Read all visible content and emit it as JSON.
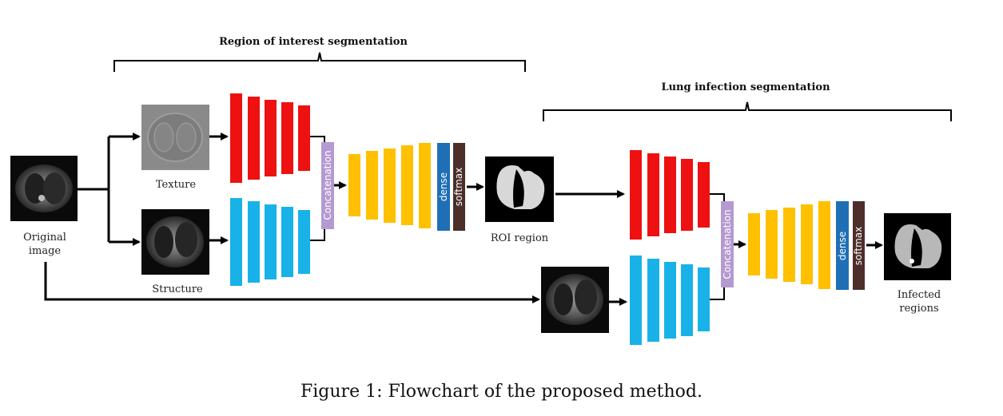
{
  "headers": {
    "roi": "Region of interest segmentation",
    "lung": "Lung infection segmentation"
  },
  "labels": {
    "original": [
      "Original",
      "image"
    ],
    "texture": "Texture",
    "structure": "Structure",
    "roi_region": "ROI region",
    "infected": [
      "Infected",
      "regions"
    ]
  },
  "blocks": {
    "concatenation": "Concatenation",
    "dense": "dense",
    "softmax": "softmax"
  },
  "caption": "Figure 1: Flowchart of the proposed method.",
  "colors": {
    "encoder_texture": "#ee1111",
    "encoder_structure": "#18b2e8",
    "decoder": "#ffc000",
    "concatenation": "#b49ad0",
    "dense": "#1f6fb6",
    "softmax": "#4e2e2a"
  }
}
